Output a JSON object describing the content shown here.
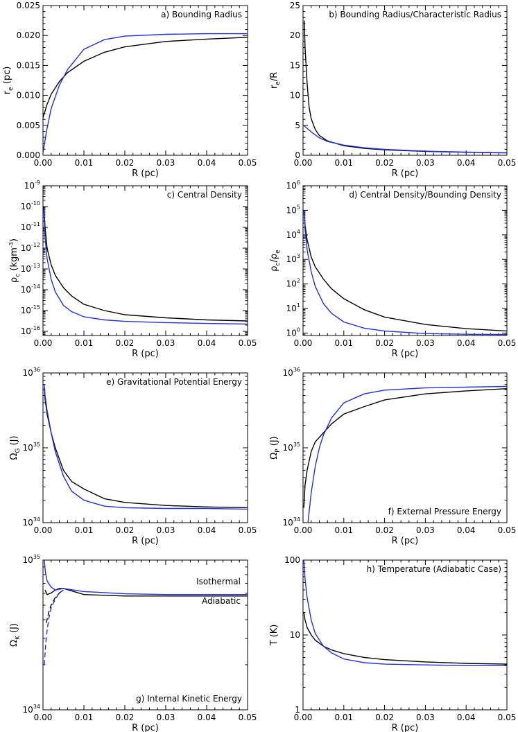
{
  "chart_data": [
    {
      "id": "a",
      "type": "line",
      "title": "a) Bounding Radius",
      "title_pos": "top-right",
      "xlabel": "R (pc)",
      "ylabel": {
        "main": "r",
        "sub": "e",
        "unit": " (pc)"
      },
      "xlim": [
        0,
        0.05
      ],
      "ylim": [
        0,
        0.025
      ],
      "yscale": "linear",
      "xticks": [
        "0.00",
        "0.01",
        "0.02",
        "0.03",
        "0.04",
        "0.05"
      ],
      "yticks": [
        "0.000",
        "0.005",
        "0.010",
        "0.015",
        "0.020",
        "0.025"
      ],
      "series": [
        {
          "name": "black",
          "color": "#000000",
          "x": [
            0,
            0.001,
            0.002,
            0.004,
            0.006,
            0.01,
            0.015,
            0.02,
            0.03,
            0.04,
            0.05
          ],
          "y": [
            0.0063,
            0.0085,
            0.0102,
            0.0123,
            0.0138,
            0.0157,
            0.0172,
            0.0181,
            0.019,
            0.0194,
            0.0197
          ]
        },
        {
          "name": "blue",
          "color": "#1f2ee0",
          "x": [
            0,
            0.001,
            0.002,
            0.004,
            0.006,
            0.01,
            0.015,
            0.02,
            0.03,
            0.04,
            0.05
          ],
          "y": [
            0.0005,
            0.0045,
            0.0078,
            0.0117,
            0.0143,
            0.0177,
            0.0193,
            0.0199,
            0.0202,
            0.0203,
            0.0203
          ]
        }
      ]
    },
    {
      "id": "b",
      "type": "line",
      "title": "b) Bounding Radius/Characteristic Radius",
      "title_pos": "top-right",
      "xlabel": "R (pc)",
      "ylabel": {
        "main": "r",
        "sub": "e",
        "unit": "/R"
      },
      "xlim": [
        0,
        0.05
      ],
      "ylim": [
        0,
        25
      ],
      "yscale": "linear",
      "xticks": [
        "0.00",
        "0.01",
        "0.02",
        "0.03",
        "0.04",
        "0.05"
      ],
      "yticks": [
        "0",
        "5",
        "10",
        "15",
        "20",
        "25"
      ],
      "series": [
        {
          "name": "black",
          "color": "#000000",
          "x": [
            0.0003,
            0.0005,
            0.001,
            0.0015,
            0.002,
            0.003,
            0.004,
            0.006,
            0.01,
            0.015,
            0.02,
            0.03,
            0.04,
            0.05
          ],
          "y": [
            22.5,
            18,
            12,
            8,
            6.1,
            4.3,
            3.3,
            2.4,
            1.6,
            1.15,
            0.9,
            0.65,
            0.5,
            0.4
          ]
        },
        {
          "name": "blue",
          "color": "#1f2ee0",
          "x": [
            0.0003,
            0.0005,
            0.001,
            0.002,
            0.004,
            0.006,
            0.01,
            0.015,
            0.02,
            0.03,
            0.04,
            0.05
          ],
          "y": [
            4.9,
            4.8,
            4.5,
            3.9,
            2.9,
            2.3,
            1.7,
            1.25,
            0.98,
            0.68,
            0.52,
            0.42
          ]
        }
      ]
    },
    {
      "id": "c",
      "type": "line",
      "title": "c) Central Density",
      "title_pos": "top-right",
      "xlabel": "R (pc)",
      "ylabel": {
        "main": "ρ",
        "sub": "c",
        "unit": " (kgm",
        "unit_sup": "-3",
        "unit_end": ")"
      },
      "xlim": [
        0,
        0.05
      ],
      "ylim_exp": [
        -16.2,
        -9
      ],
      "yscale": "log",
      "xticks": [
        "0.00",
        "0.01",
        "0.02",
        "0.03",
        "0.04",
        "0.05"
      ],
      "yticks_exp": [
        "-9",
        "-10",
        "-11",
        "-12",
        "-13",
        "-14",
        "-15",
        "-16"
      ],
      "series": [
        {
          "name": "black",
          "color": "#000000",
          "x": [
            0.0002,
            0.0005,
            0.001,
            0.002,
            0.003,
            0.005,
            0.007,
            0.01,
            0.015,
            0.02,
            0.03,
            0.04,
            0.05
          ],
          "log10_y": [
            -10.0,
            -11.0,
            -12.0,
            -12.8,
            -13.3,
            -13.9,
            -14.3,
            -14.7,
            -15.0,
            -15.2,
            -15.35,
            -15.45,
            -15.5
          ]
        },
        {
          "name": "blue",
          "color": "#1f2ee0",
          "x": [
            0.0002,
            0.0005,
            0.001,
            0.002,
            0.003,
            0.005,
            0.007,
            0.01,
            0.015,
            0.02,
            0.03,
            0.04,
            0.05
          ],
          "log10_y": [
            -10.1,
            -11.5,
            -12.5,
            -13.5,
            -14.1,
            -14.75,
            -15.05,
            -15.3,
            -15.45,
            -15.52,
            -15.58,
            -15.62,
            -15.65
          ]
        }
      ]
    },
    {
      "id": "d",
      "type": "line",
      "title": "d) Central Density/Bounding Density",
      "title_pos": "top-right",
      "xlabel": "R (pc)",
      "ylabel": {
        "main": "ρ",
        "sub": "c",
        "unit": "/ρ",
        "unit_sub": "e"
      },
      "xlim": [
        0,
        0.05
      ],
      "ylim_exp": [
        -0.1,
        6
      ],
      "yscale": "log",
      "xticks": [
        "0.00",
        "0.01",
        "0.02",
        "0.03",
        "0.04",
        "0.05"
      ],
      "yticks_exp": [
        "0",
        "1",
        "2",
        "3",
        "4",
        "5",
        "6"
      ],
      "series": [
        {
          "name": "black",
          "color": "#000000",
          "x": [
            0.0003,
            0.0005,
            0.001,
            0.002,
            0.003,
            0.005,
            0.007,
            0.01,
            0.015,
            0.02,
            0.03,
            0.04,
            0.05
          ],
          "log10_y": [
            5.0,
            4.4,
            3.8,
            3.1,
            2.7,
            2.2,
            1.8,
            1.4,
            0.95,
            0.65,
            0.35,
            0.18,
            0.08
          ]
        },
        {
          "name": "blue",
          "color": "#1f2ee0",
          "x": [
            0.0003,
            0.0005,
            0.001,
            0.002,
            0.003,
            0.005,
            0.007,
            0.01,
            0.015,
            0.02,
            0.03,
            0.04,
            0.05
          ],
          "log10_y": [
            5.0,
            4.2,
            3.4,
            2.5,
            1.9,
            1.2,
            0.8,
            0.45,
            0.2,
            0.08,
            -0.02,
            -0.05,
            -0.06
          ]
        }
      ]
    },
    {
      "id": "e",
      "type": "line",
      "title": "e) Gravitational Potential Energy",
      "title_pos": "top-right",
      "xlabel": "R (pc)",
      "ylabel": {
        "main": "Ω",
        "sub": "G",
        "unit": " (J)"
      },
      "xlim": [
        0,
        0.05
      ],
      "ylim_exp": [
        34,
        36
      ],
      "yscale": "log",
      "xticks": [
        "0.00",
        "0.01",
        "0.02",
        "0.03",
        "0.04",
        "0.05"
      ],
      "yticks_exp": [
        "34",
        "35",
        "36"
      ],
      "series": [
        {
          "name": "black",
          "color": "#000000",
          "x": [
            0.0003,
            0.0005,
            0.001,
            0.002,
            0.003,
            0.005,
            0.007,
            0.01,
            0.015,
            0.02,
            0.03,
            0.04,
            0.05
          ],
          "log10_y": [
            35.8,
            35.65,
            35.45,
            35.2,
            35.0,
            34.7,
            34.55,
            34.45,
            34.32,
            34.27,
            34.23,
            34.21,
            34.2
          ]
        },
        {
          "name": "blue",
          "color": "#1f2ee0",
          "x": [
            0.0003,
            0.0005,
            0.001,
            0.002,
            0.003,
            0.005,
            0.007,
            0.01,
            0.015,
            0.02,
            0.03,
            0.04,
            0.05
          ],
          "log10_y": [
            35.85,
            35.7,
            35.5,
            35.2,
            34.95,
            34.62,
            34.42,
            34.3,
            34.22,
            34.2,
            34.19,
            34.19,
            34.18
          ]
        }
      ]
    },
    {
      "id": "f",
      "type": "line",
      "title": "f) External Pressure Energy",
      "title_pos": "bottom-right",
      "xlabel": "R (pc)",
      "ylabel": {
        "main": "Ω",
        "sub": "P",
        "unit": " (J)"
      },
      "xlim": [
        0,
        0.05
      ],
      "ylim_exp": [
        34,
        36
      ],
      "yscale": "log",
      "xticks": [
        "0.00",
        "0.01",
        "0.02",
        "0.03",
        "0.04",
        "0.05"
      ],
      "yticks_exp": [
        "34",
        "35",
        "36"
      ],
      "series": [
        {
          "name": "black",
          "color": "#000000",
          "x": [
            0.0002,
            0.0005,
            0.001,
            0.002,
            0.003,
            0.005,
            0.007,
            0.01,
            0.015,
            0.02,
            0.03,
            0.04,
            0.05
          ],
          "log10_y": [
            34.2,
            34.5,
            34.7,
            34.95,
            35.08,
            35.2,
            35.32,
            35.45,
            35.55,
            35.64,
            35.72,
            35.76,
            35.79
          ]
        },
        {
          "name": "blue",
          "color": "#1f2ee0",
          "x": [
            0.0012,
            0.002,
            0.003,
            0.004,
            0.005,
            0.007,
            0.01,
            0.015,
            0.02,
            0.03,
            0.04,
            0.05
          ],
          "log10_y": [
            34.0,
            34.4,
            34.75,
            35.0,
            35.17,
            35.4,
            35.6,
            35.72,
            35.77,
            35.8,
            35.81,
            35.82
          ]
        }
      ]
    },
    {
      "id": "g",
      "type": "line",
      "title": "g) Internal Kinetic Energy",
      "title_pos": "bottom-right",
      "xlabel": "R (pc)",
      "ylabel": {
        "main": "Ω",
        "sub": "K",
        "unit": " (J)"
      },
      "xlim": [
        0,
        0.05
      ],
      "ylim_exp": [
        34,
        35
      ],
      "yscale": "log",
      "xticks": [
        "0.00",
        "0.01",
        "0.02",
        "0.03",
        "0.04",
        "0.05"
      ],
      "yticks_exp": [
        "34",
        "35"
      ],
      "annotations": [
        "Isothermal",
        "Adiabatic"
      ],
      "series": [
        {
          "name": "black-solid",
          "color": "#000000",
          "dash": false,
          "x": [
            0.0005,
            0.001,
            0.002,
            0.003,
            0.004,
            0.005,
            0.01,
            0.02,
            0.03,
            0.04,
            0.05
          ],
          "log10_y": [
            34.8,
            34.77,
            34.78,
            34.8,
            34.81,
            34.81,
            34.77,
            34.76,
            34.76,
            34.76,
            34.76
          ]
        },
        {
          "name": "blue-solid",
          "color": "#1f2ee0",
          "dash": false,
          "x": [
            0.0003,
            0.0006,
            0.001,
            0.002,
            0.003,
            0.004,
            0.005,
            0.01,
            0.02,
            0.03,
            0.04,
            0.05
          ],
          "log10_y": [
            35.0,
            34.92,
            34.86,
            34.82,
            34.8,
            34.805,
            34.81,
            34.79,
            34.775,
            34.77,
            34.77,
            34.77
          ]
        },
        {
          "name": "black-dashed",
          "color": "#000000",
          "dash": true,
          "x": [
            0.0008,
            0.0015,
            0.002,
            0.003,
            0.004,
            0.005
          ],
          "log10_y": [
            34.58,
            34.66,
            34.7,
            34.75,
            34.78,
            34.8
          ]
        },
        {
          "name": "blue-dashed",
          "color": "#1f2ee0",
          "dash": true,
          "x": [
            0.0003,
            0.0007,
            0.001,
            0.0015,
            0.002,
            0.003,
            0.004,
            0.005
          ],
          "log10_y": [
            34.3,
            34.45,
            34.53,
            34.62,
            34.68,
            34.74,
            34.78,
            34.8
          ]
        }
      ]
    },
    {
      "id": "h",
      "type": "line",
      "title": "h) Temperature (Adiabatic Case)",
      "title_pos": "top-right",
      "xlabel": "R (pc)",
      "ylabel": {
        "main": "T",
        "sub": "",
        "unit": " (K)"
      },
      "xlim": [
        0,
        0.05
      ],
      "ylim_exp": [
        0,
        2
      ],
      "yscale": "log",
      "xticks": [
        "0.00",
        "0.01",
        "0.02",
        "0.03",
        "0.04",
        "0.05"
      ],
      "yticks_plain": [
        "1",
        "10",
        "100"
      ],
      "series": [
        {
          "name": "black",
          "color": "#000000",
          "x": [
            0.0002,
            0.0005,
            0.001,
            0.002,
            0.003,
            0.005,
            0.007,
            0.01,
            0.015,
            0.02,
            0.03,
            0.04,
            0.05
          ],
          "log10_y": [
            1.3,
            1.2,
            1.1,
            1.0,
            0.93,
            0.85,
            0.8,
            0.75,
            0.7,
            0.67,
            0.64,
            0.62,
            0.61
          ]
        },
        {
          "name": "blue",
          "color": "#1f2ee0",
          "x": [
            0.0002,
            0.0005,
            0.001,
            0.002,
            0.003,
            0.005,
            0.007,
            0.01,
            0.015,
            0.02,
            0.03,
            0.04,
            0.05
          ],
          "log10_y": [
            2.0,
            1.75,
            1.5,
            1.2,
            1.02,
            0.85,
            0.76,
            0.68,
            0.63,
            0.61,
            0.6,
            0.59,
            0.59
          ]
        }
      ]
    }
  ]
}
